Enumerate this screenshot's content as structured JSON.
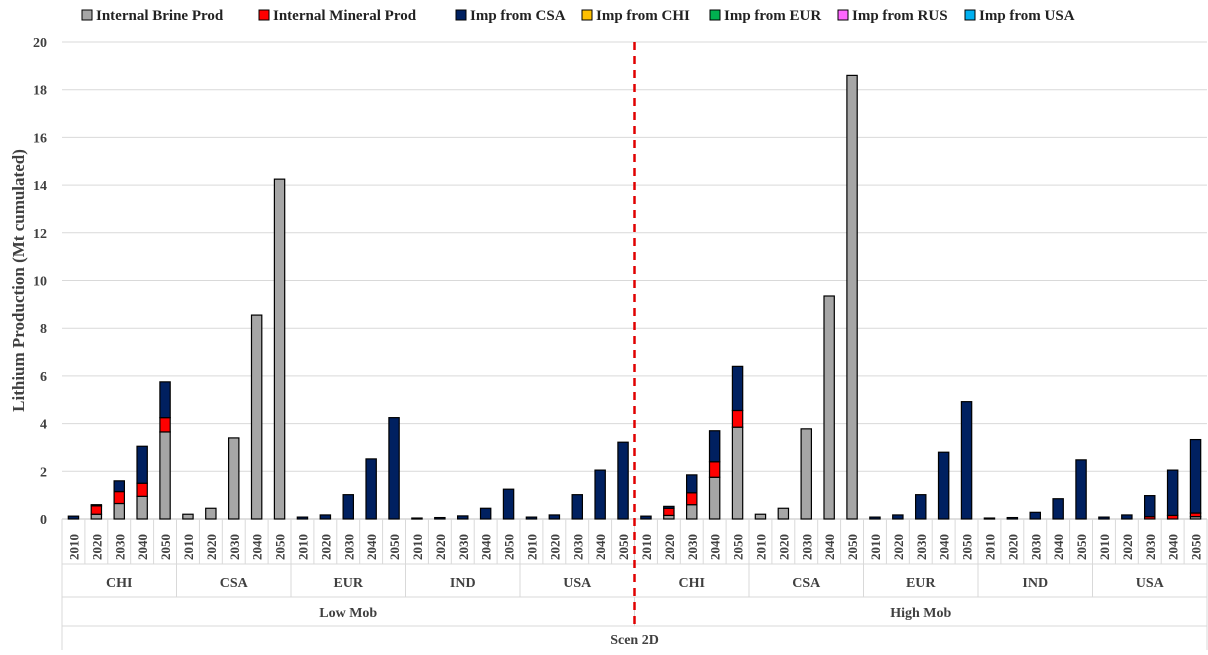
{
  "chart_data": {
    "type": "bar",
    "stacked": true,
    "ylabel": "Lithium Production (Mt cumulated)",
    "ylim": [
      0,
      20
    ],
    "yticks": [
      0,
      2,
      4,
      6,
      8,
      10,
      12,
      14,
      16,
      18,
      20
    ],
    "grid": true,
    "legend_position": "top",
    "scenario": "Scen 2D",
    "years": [
      "2010",
      "2020",
      "2030",
      "2040",
      "2050"
    ],
    "regions": [
      "CHI",
      "CSA",
      "EUR",
      "IND",
      "USA"
    ],
    "groups": [
      {
        "name": "Low Mob",
        "regions": [
          {
            "name": "CHI",
            "stacks": [
              [
                0,
                0,
                0.12,
                0,
                0,
                0,
                0
              ],
              [
                0.2,
                0.35,
                0.05,
                0,
                0,
                0,
                0
              ],
              [
                0.65,
                0.5,
                0.45,
                0,
                0,
                0,
                0
              ],
              [
                0.95,
                0.55,
                1.55,
                0,
                0,
                0,
                0
              ],
              [
                3.65,
                0.6,
                1.5,
                0,
                0,
                0,
                0
              ]
            ]
          },
          {
            "name": "CSA",
            "stacks": [
              [
                0.2,
                0,
                0,
                0,
                0,
                0,
                0
              ],
              [
                0.45,
                0,
                0,
                0,
                0,
                0,
                0
              ],
              [
                3.4,
                0,
                0,
                0,
                0,
                0,
                0
              ],
              [
                8.55,
                0,
                0,
                0,
                0,
                0,
                0
              ],
              [
                14.25,
                0,
                0,
                0,
                0,
                0,
                0
              ]
            ]
          },
          {
            "name": "EUR",
            "stacks": [
              [
                0,
                0,
                0.08,
                0,
                0,
                0,
                0
              ],
              [
                0,
                0,
                0.17,
                0,
                0,
                0,
                0
              ],
              [
                0,
                0,
                1.02,
                0,
                0,
                0,
                0
              ],
              [
                0,
                0,
                2.52,
                0,
                0,
                0,
                0
              ],
              [
                0,
                0,
                4.25,
                0,
                0,
                0,
                0
              ]
            ]
          },
          {
            "name": "IND",
            "stacks": [
              [
                0,
                0,
                0.04,
                0,
                0,
                0,
                0
              ],
              [
                0,
                0,
                0.06,
                0,
                0,
                0,
                0
              ],
              [
                0,
                0,
                0.13,
                0,
                0,
                0,
                0
              ],
              [
                0,
                0,
                0.45,
                0,
                0,
                0,
                0
              ],
              [
                0,
                0,
                1.25,
                0,
                0,
                0,
                0
              ]
            ]
          },
          {
            "name": "USA",
            "stacks": [
              [
                0,
                0,
                0.08,
                0,
                0,
                0,
                0
              ],
              [
                0,
                0,
                0.17,
                0,
                0,
                0,
                0
              ],
              [
                0,
                0,
                1.02,
                0,
                0,
                0,
                0
              ],
              [
                0,
                0,
                2.05,
                0,
                0,
                0,
                0
              ],
              [
                0,
                0,
                3.22,
                0,
                0,
                0,
                0
              ]
            ]
          }
        ]
      },
      {
        "name": "High Mob",
        "regions": [
          {
            "name": "CHI",
            "stacks": [
              [
                0,
                0,
                0.12,
                0,
                0,
                0,
                0
              ],
              [
                0.15,
                0.3,
                0.08,
                0,
                0,
                0,
                0
              ],
              [
                0.6,
                0.5,
                0.75,
                0,
                0,
                0,
                0
              ],
              [
                1.75,
                0.65,
                1.3,
                0,
                0,
                0,
                0
              ],
              [
                3.85,
                0.7,
                1.85,
                0,
                0,
                0,
                0
              ]
            ]
          },
          {
            "name": "CSA",
            "stacks": [
              [
                0.2,
                0,
                0,
                0,
                0,
                0,
                0
              ],
              [
                0.45,
                0,
                0,
                0,
                0,
                0,
                0
              ],
              [
                3.78,
                0,
                0,
                0,
                0,
                0,
                0
              ],
              [
                9.35,
                0,
                0,
                0,
                0,
                0,
                0
              ],
              [
                18.6,
                0,
                0,
                0,
                0,
                0,
                0
              ]
            ]
          },
          {
            "name": "EUR",
            "stacks": [
              [
                0,
                0,
                0.08,
                0,
                0,
                0,
                0
              ],
              [
                0,
                0,
                0.17,
                0,
                0,
                0,
                0
              ],
              [
                0,
                0,
                1.02,
                0,
                0,
                0,
                0
              ],
              [
                0,
                0,
                2.8,
                0,
                0,
                0,
                0
              ],
              [
                0,
                0,
                4.92,
                0,
                0,
                0,
                0
              ]
            ]
          },
          {
            "name": "IND",
            "stacks": [
              [
                0,
                0,
                0.04,
                0,
                0,
                0,
                0
              ],
              [
                0,
                0,
                0.06,
                0,
                0,
                0,
                0
              ],
              [
                0,
                0,
                0.28,
                0,
                0,
                0,
                0
              ],
              [
                0,
                0,
                0.85,
                0,
                0,
                0,
                0
              ],
              [
                0,
                0,
                2.48,
                0,
                0,
                0,
                0
              ]
            ]
          },
          {
            "name": "USA",
            "stacks": [
              [
                0,
                0,
                0.08,
                0,
                0,
                0,
                0
              ],
              [
                0,
                0,
                0.17,
                0,
                0,
                0,
                0
              ],
              [
                0,
                0.1,
                0.88,
                0,
                0,
                0,
                0
              ],
              [
                0,
                0.15,
                1.9,
                0,
                0,
                0,
                0
              ],
              [
                0.1,
                0.15,
                3.08,
                0,
                0,
                0,
                0
              ]
            ]
          }
        ]
      }
    ],
    "series": [
      {
        "name": "Internal Brine Prod",
        "color": "#a6a6a6"
      },
      {
        "name": "Internal Mineral Prod",
        "color": "#ff0000"
      },
      {
        "name": "Imp from CSA",
        "color": "#002060"
      },
      {
        "name": "Imp from CHI",
        "color": "#ffc000"
      },
      {
        "name": "Imp from EUR",
        "color": "#00b050"
      },
      {
        "name": "Imp from RUS",
        "color": "#ff66ff"
      },
      {
        "name": "Imp from USA",
        "color": "#00b0f0"
      }
    ],
    "separator_color": "#e00000"
  }
}
